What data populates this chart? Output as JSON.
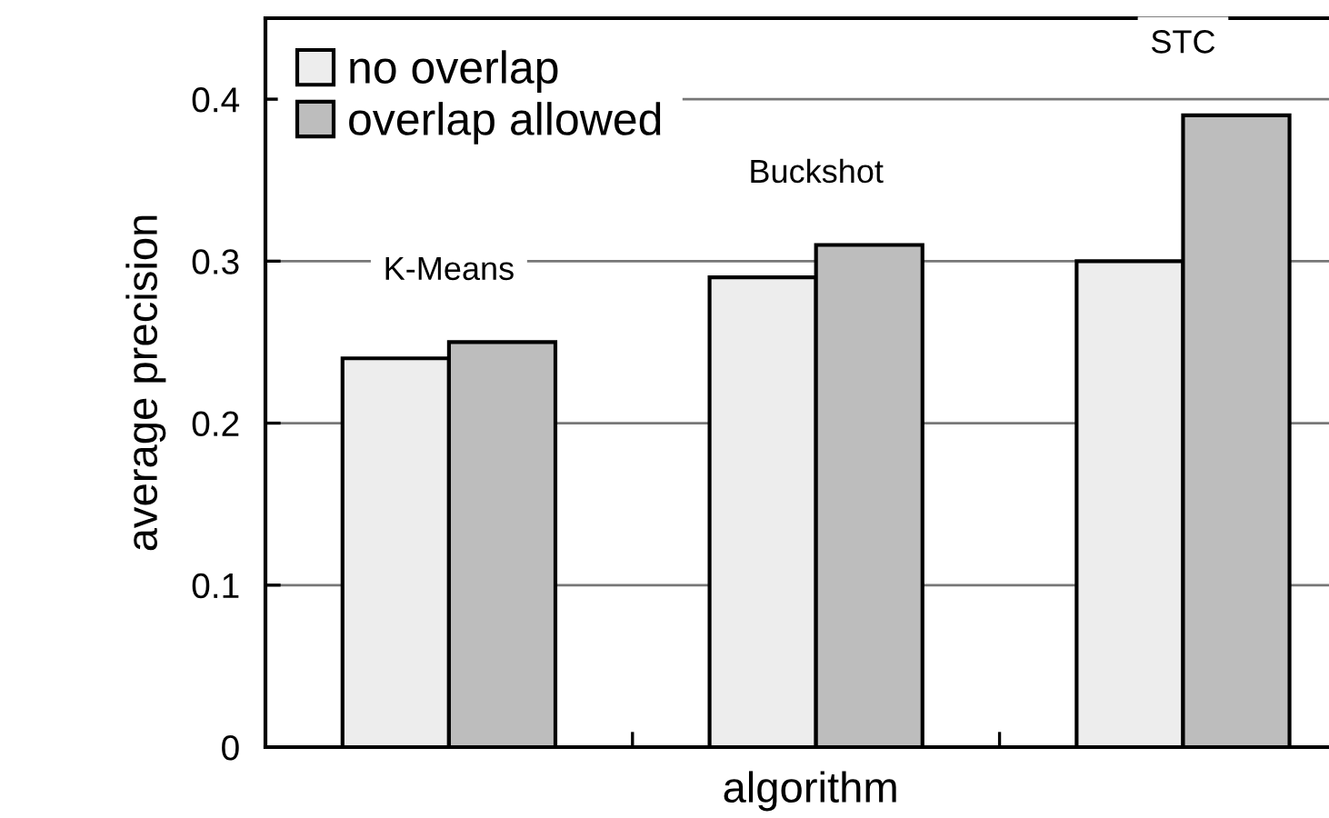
{
  "chart_data": {
    "type": "bar",
    "xlabel": "algorithm",
    "ylabel": "average precision",
    "categories": [
      "K-Means",
      "Buckshot",
      "STC"
    ],
    "series": [
      {
        "name": "no overlap",
        "color": "#ededed",
        "values": [
          0.24,
          0.29,
          0.3
        ]
      },
      {
        "name": "overlap allowed",
        "color": "#bdbdbd",
        "values": [
          0.25,
          0.31,
          0.39
        ]
      }
    ],
    "ylim": [
      0,
      0.45
    ],
    "yticks": [
      {
        "value": 0,
        "label": "0"
      },
      0.1,
      0.2,
      0.3,
      0.4
    ],
    "grid": "y",
    "legend": "top left"
  }
}
